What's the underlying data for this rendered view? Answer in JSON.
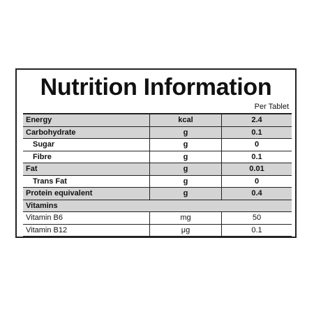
{
  "header": {
    "title": "Nutrition Information",
    "serving": "Per Tablet"
  },
  "table": {
    "rows": [
      [
        "Energy",
        "kcal",
        2.4
      ],
      [
        "Carbohydrate",
        "g",
        0.1
      ],
      [
        "Sugar",
        "g",
        0
      ],
      [
        "Fibre",
        "g",
        0.1
      ],
      [
        "Fat",
        "g",
        0.01
      ],
      [
        "Trans Fat",
        "g",
        0
      ],
      [
        "Protein equivalent",
        "g",
        0.4
      ],
      [
        "Vitamins"
      ],
      [
        "Vitamin B6",
        "mg",
        50
      ],
      [
        "Vitamin B12",
        "μg",
        0.1
      ]
    ]
  }
}
